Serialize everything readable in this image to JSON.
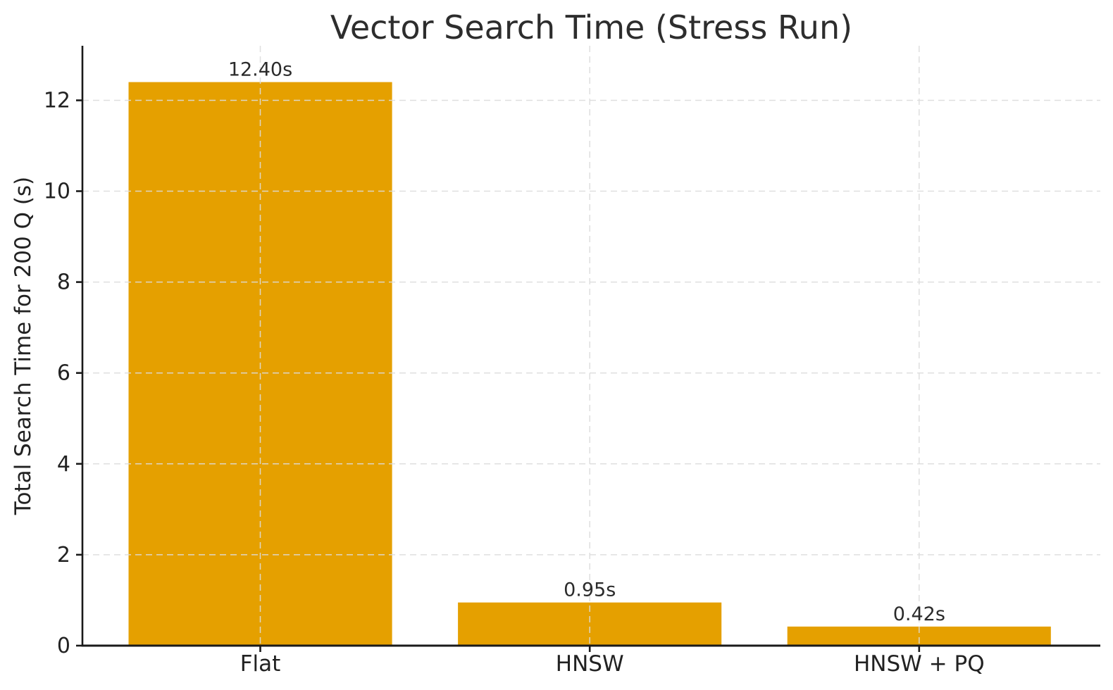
{
  "chart_data": {
    "type": "bar",
    "title": "Vector Search Time (Stress Run)",
    "xlabel": "",
    "ylabel": "Total Search Time for 200 Q (s)",
    "categories": [
      "Flat",
      "HNSW",
      "HNSW + PQ"
    ],
    "values": [
      12.4,
      0.95,
      0.42
    ],
    "value_labels": [
      "12.40s",
      "0.95s",
      "0.42s"
    ],
    "ylim": [
      0,
      13.2
    ],
    "yticks": [
      0,
      2,
      4,
      6,
      8,
      10,
      12
    ],
    "grid": "dashed horizontal and vertical, drawn above bars",
    "legend": "none",
    "bar_color": "#E5A000",
    "colors": {
      "background": "#FFFFFF",
      "grid": "#DCDCDC",
      "axis": "#1A1A1A",
      "text": "#222222",
      "title_text": "#2D2D2D"
    }
  }
}
